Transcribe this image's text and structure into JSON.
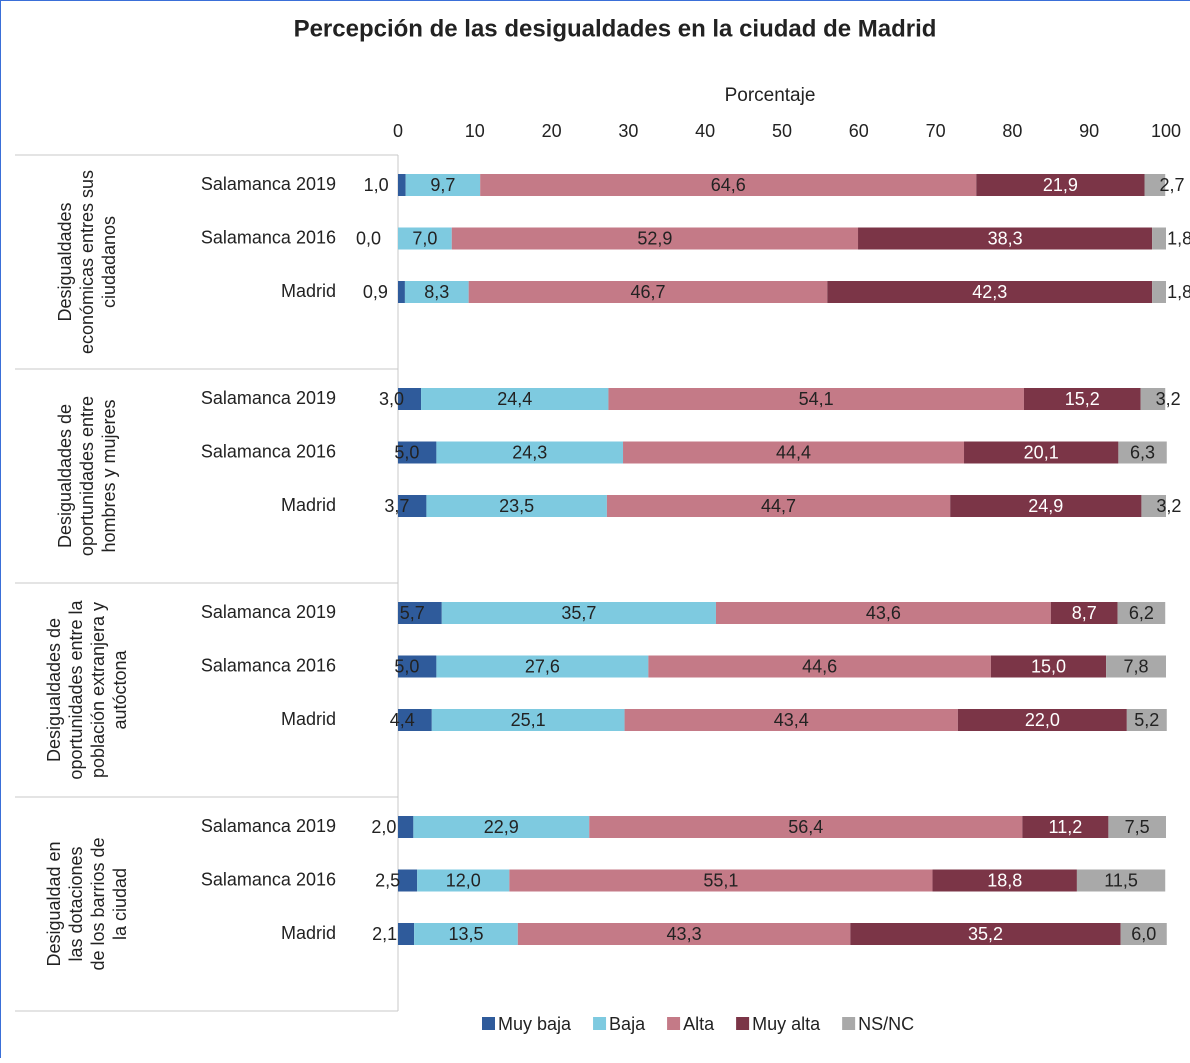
{
  "chart_data": {
    "type": "stacked_barh",
    "title": "Percepción de las desigualdades en la ciudad de Madrid",
    "xlabel": "Porcentaje",
    "xlim": [
      0,
      100
    ],
    "xticks": [
      0,
      10,
      20,
      30,
      40,
      50,
      60,
      70,
      80,
      90,
      100
    ],
    "groups": [
      [
        "Desigualdades",
        "económicas entres sus",
        "ciudadanos"
      ],
      [
        "Desigualdades de",
        "oportunidades entre",
        "hombres y mujeres"
      ],
      [
        "Desigualdades de",
        "oportunidades entre la",
        "población extranjera y",
        "autóctona"
      ],
      [
        "Desigualdad en",
        "las dotaciones",
        "de los barrios de",
        "la ciudad"
      ]
    ],
    "categories": [
      "Salamanca 2019",
      "Salamanca 2016",
      "Madrid",
      "Salamanca 2019",
      "Salamanca 2016",
      "Madrid",
      "Salamanca 2019",
      "Salamanca 2016",
      "Madrid",
      "Salamanca 2019",
      "Salamanca 2016",
      "Madrid"
    ],
    "legend": "bottom",
    "series": [
      {
        "name": "Muy baja",
        "color": "#2f5b9b",
        "values": [
          1.0,
          0.0,
          0.9,
          3.0,
          5.0,
          3.7,
          5.7,
          5.0,
          4.4,
          2.0,
          2.5,
          2.1
        ],
        "value_labels": [
          "1,0",
          "0,0",
          "0,9",
          "3,0",
          "5,0",
          "3,7",
          "5,7",
          "5,0",
          "4,4",
          "2,0",
          "2,5",
          "2,1"
        ]
      },
      {
        "name": "Baja",
        "color": "#7ecae0",
        "values": [
          9.7,
          7.0,
          8.3,
          24.4,
          24.3,
          23.5,
          35.7,
          27.6,
          25.1,
          22.9,
          12.0,
          13.5
        ],
        "value_labels": [
          "9,7",
          "7,0",
          "8,3",
          "24,4",
          "24,3",
          "23,5",
          "35,7",
          "27,6",
          "25,1",
          "22,9",
          "12,0",
          "13,5"
        ]
      },
      {
        "name": "Alta",
        "color": "#c47a87",
        "values": [
          64.6,
          52.9,
          46.7,
          54.1,
          44.4,
          44.7,
          43.6,
          44.6,
          43.4,
          56.4,
          55.1,
          43.3
        ],
        "value_labels": [
          "64,6",
          "52,9",
          "46,7",
          "54,1",
          "44,4",
          "44,7",
          "43,6",
          "44,6",
          "43,4",
          "56,4",
          "55,1",
          "43,3"
        ]
      },
      {
        "name": "Muy alta",
        "color": "#7b3547",
        "values": [
          21.9,
          38.3,
          42.3,
          15.2,
          20.1,
          24.9,
          8.7,
          15.0,
          22.0,
          11.2,
          18.8,
          35.2
        ],
        "value_labels": [
          "21,9",
          "38,3",
          "42,3",
          "15,2",
          "20,1",
          "24,9",
          "8,7",
          "15,0",
          "22,0",
          "11,2",
          "18,8",
          "35,2"
        ]
      },
      {
        "name": "NS/NC",
        "color": "#a9a9a9",
        "values": [
          2.7,
          1.8,
          1.8,
          3.2,
          6.3,
          3.2,
          6.2,
          7.8,
          5.2,
          7.5,
          11.5,
          6.0
        ],
        "value_labels": [
          "2,7",
          "1,8",
          "1,8",
          "3,2",
          "6,3",
          "3,2",
          "6,2",
          "7,8",
          "5,2",
          "7,5",
          "11,5",
          "6,0"
        ]
      }
    ]
  }
}
